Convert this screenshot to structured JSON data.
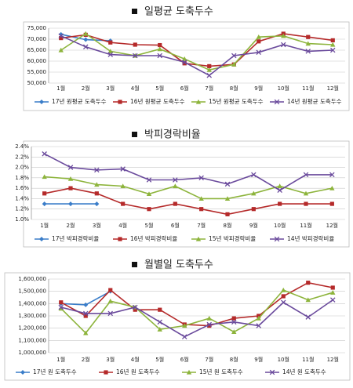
{
  "chart_data": [
    {
      "type": "line",
      "title": "일평균 도축두수",
      "categories": [
        "1월",
        "2월",
        "3월",
        "4월",
        "5월",
        "6월",
        "7월",
        "8월",
        "9월",
        "10월",
        "11월",
        "12월"
      ],
      "ylim": [
        50000,
        75000
      ],
      "yticks": [
        {
          "value": 50000,
          "label": "50,000"
        },
        {
          "value": 55000,
          "label": "55,000"
        },
        {
          "value": 60000,
          "label": "60,000"
        },
        {
          "value": 65000,
          "label": "65,000"
        },
        {
          "value": 70000,
          "label": "70,000"
        },
        {
          "value": 75000,
          "label": "75,000"
        }
      ],
      "grid": true,
      "series": [
        {
          "name": "17년 원평균 도축두수",
          "color": "#3a7dc9",
          "marker": "diamond",
          "values": [
            72200,
            69800,
            69300,
            null,
            null,
            null,
            null,
            null,
            null,
            null,
            null,
            null
          ]
        },
        {
          "name": "16년 원평균 도축두수",
          "color": "#b52a2a",
          "marker": "square",
          "values": [
            70500,
            72000,
            68500,
            67500,
            67300,
            59000,
            57700,
            58500,
            69000,
            72500,
            71000,
            69500
          ]
        },
        {
          "name": "15년 원평균 도축두수",
          "color": "#8db43c",
          "marker": "triangle",
          "values": [
            65000,
            72500,
            64500,
            62500,
            65500,
            61000,
            56000,
            58500,
            71000,
            71500,
            68000,
            67500
          ]
        },
        {
          "name": "14년 원평균 도축두수",
          "color": "#6a4a9c",
          "marker": "x",
          "values": [
            71500,
            66500,
            63000,
            62500,
            62500,
            59500,
            53500,
            62500,
            64000,
            67500,
            64500,
            65000
          ]
        }
      ]
    },
    {
      "type": "line",
      "title": "박피경락비율",
      "categories": [
        "1월",
        "2월",
        "3월",
        "4월",
        "5월",
        "6월",
        "7월",
        "8월",
        "9월",
        "10월",
        "11월",
        "12월"
      ],
      "ylim": [
        1.0,
        2.4
      ],
      "yticks": [
        {
          "value": 1.0,
          "label": "1.0%"
        },
        {
          "value": 1.2,
          "label": "1.2%"
        },
        {
          "value": 1.4,
          "label": "1.4%"
        },
        {
          "value": 1.6,
          "label": "1.6%"
        },
        {
          "value": 1.8,
          "label": "1.8%"
        },
        {
          "value": 2.0,
          "label": "2.0%"
        },
        {
          "value": 2.2,
          "label": "2.2%"
        },
        {
          "value": 2.4,
          "label": "2.4%"
        }
      ],
      "grid": true,
      "series": [
        {
          "name": "17년 박피경락비율",
          "color": "#3a7dc9",
          "marker": "diamond",
          "values": [
            1.3,
            1.3,
            1.3,
            null,
            null,
            null,
            null,
            null,
            null,
            null,
            null,
            null
          ]
        },
        {
          "name": "16년 박피경락비율",
          "color": "#b52a2a",
          "marker": "square",
          "values": [
            1.5,
            1.6,
            1.5,
            1.3,
            1.2,
            1.3,
            1.2,
            1.1,
            1.2,
            1.3,
            1.3,
            1.3
          ]
        },
        {
          "name": "15년 박피경락비율",
          "color": "#8db43c",
          "marker": "triangle",
          "values": [
            1.82,
            1.78,
            1.67,
            1.64,
            1.49,
            1.64,
            1.4,
            1.4,
            1.5,
            1.64,
            1.5,
            1.6
          ]
        },
        {
          "name": "14년 박피경락비율",
          "color": "#6a4a9c",
          "marker": "x",
          "values": [
            2.26,
            2.0,
            1.95,
            1.97,
            1.76,
            1.76,
            1.8,
            1.68,
            1.86,
            1.56,
            1.86,
            1.86
          ]
        }
      ]
    },
    {
      "type": "line",
      "title": "월별일 도축두수",
      "categories": [
        "1월",
        "2월",
        "3월",
        "4월",
        "5월",
        "6월",
        "7월",
        "8월",
        "9월",
        "10월",
        "11월",
        "12월"
      ],
      "ylim": [
        1000000,
        1600000
      ],
      "yticks": [
        {
          "value": 1000000,
          "label": "1,000,000"
        },
        {
          "value": 1100000,
          "label": "1,100,000"
        },
        {
          "value": 1200000,
          "label": "1,200,000"
        },
        {
          "value": 1300000,
          "label": "1,300,000"
        },
        {
          "value": 1400000,
          "label": "1,400,000"
        },
        {
          "value": 1500000,
          "label": "1,500,000"
        },
        {
          "value": 1600000,
          "label": "1,600,000"
        }
      ],
      "grid": true,
      "series": [
        {
          "name": "17년 원 도축두수",
          "color": "#3a7dc9",
          "marker": "diamond",
          "values": [
            1400000,
            1390000,
            1500000,
            null,
            null,
            null,
            null,
            null,
            null,
            null,
            null,
            null
          ]
        },
        {
          "name": "16년 원 도축두수",
          "color": "#b52a2a",
          "marker": "square",
          "values": [
            1410000,
            1300000,
            1510000,
            1350000,
            1350000,
            1230000,
            1220000,
            1280000,
            1300000,
            1460000,
            1570000,
            1530000
          ]
        },
        {
          "name": "15년 원 도축두수",
          "color": "#8db43c",
          "marker": "triangle",
          "values": [
            1360000,
            1160000,
            1420000,
            1370000,
            1190000,
            1220000,
            1280000,
            1170000,
            1280000,
            1510000,
            1430000,
            1490000
          ]
        },
        {
          "name": "14년 원 도축두수",
          "color": "#6a4a9c",
          "marker": "x",
          "values": [
            1370000,
            1320000,
            1320000,
            1370000,
            1250000,
            1130000,
            1230000,
            1250000,
            1220000,
            1410000,
            1290000,
            1430000
          ]
        }
      ]
    }
  ]
}
